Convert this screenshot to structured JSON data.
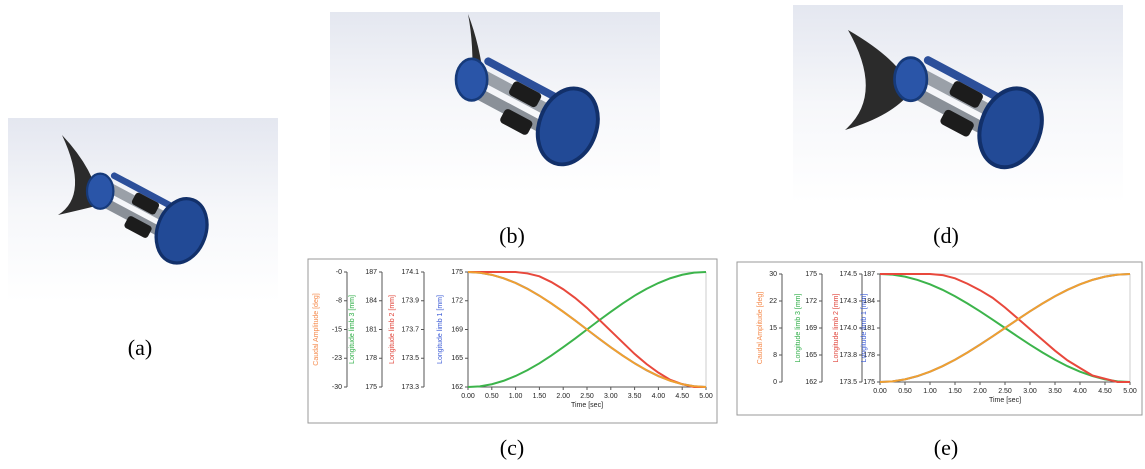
{
  "figure": {
    "panels": [
      {
        "caption": "(a)"
      },
      {
        "caption": "(b)"
      },
      {
        "caption": "(c)"
      },
      {
        "caption": "(d)"
      },
      {
        "caption": "(e)"
      }
    ]
  },
  "chart_data": [
    {
      "type": "line",
      "xlabel": "Time [sec]",
      "xlim": [
        0,
        5
      ],
      "xticks": [
        {
          "value": 0,
          "label": "0.00"
        },
        {
          "value": 0.5,
          "label": "0.50"
        },
        {
          "value": 1,
          "label": "1.00"
        },
        {
          "value": 1.5,
          "label": "1.50"
        },
        {
          "value": 2,
          "label": "2.00"
        },
        {
          "value": 2.5,
          "label": "2.50"
        },
        {
          "value": 3,
          "label": "3.00"
        },
        {
          "value": 3.5,
          "label": "3.50"
        },
        {
          "value": 4,
          "label": "4.00"
        },
        {
          "value": 4.5,
          "label": "4.50"
        },
        {
          "value": 5,
          "label": "5.00"
        }
      ],
      "x": [
        0,
        0.25,
        0.5,
        0.75,
        1,
        1.25,
        1.5,
        1.75,
        2,
        2.25,
        2.5,
        2.75,
        3,
        3.25,
        3.5,
        3.75,
        4,
        4.25,
        4.5,
        4.75,
        5
      ],
      "axes": [
        {
          "label": "Caudal Amplitude [deg]",
          "color": "#f5894a",
          "ylim": [
            -30,
            0
          ],
          "yticks": [
            -30,
            {
              "value": -22.5,
              "label": "-23"
            },
            -15,
            {
              "value": -7.5,
              "label": "-8"
            },
            {
              "value": 0,
              "label": "-0"
            }
          ]
        },
        {
          "label": "Longitude limb 3 [mm]",
          "color": "#2fae47",
          "ylim": [
            175,
            187
          ],
          "yticks": [
            175,
            178,
            181,
            184,
            187
          ]
        },
        {
          "label": "Longitude limb 2 [mm]",
          "color": "#e0443a",
          "ylim": [
            173.3,
            174.1
          ],
          "yticks": [
            173.3,
            173.5,
            173.7,
            173.9,
            174.1
          ]
        },
        {
          "label": "Longitude limb 1 [mm]",
          "color": "#3b5bd6",
          "ylim": [
            162,
            175
          ],
          "yticks": [
            162,
            {
              "value": 165.25,
              "label": "165"
            },
            {
              "value": 168.5,
              "label": "169"
            },
            {
              "value": 171.75,
              "label": "172"
            },
            175
          ]
        }
      ],
      "series": [
        {
          "axis": 3,
          "color": "#5a78c8",
          "values": [
            175,
            174.92,
            174.68,
            174.29,
            173.76,
            173.1,
            172.32,
            171.45,
            170.51,
            169.52,
            168.5,
            167.48,
            166.49,
            165.55,
            164.68,
            163.9,
            163.24,
            162.71,
            162.32,
            162.08,
            162
          ]
        },
        {
          "axis": 1,
          "color": "#3cb44b",
          "values": [
            175,
            175.07,
            175.29,
            175.65,
            176.15,
            176.76,
            177.47,
            178.28,
            179.15,
            180.06,
            181,
            181.94,
            182.85,
            183.72,
            184.53,
            185.24,
            185.85,
            186.35,
            186.71,
            186.93,
            187
          ]
        },
        {
          "axis": 2,
          "color": "#e8483c",
          "values": [
            174.1,
            174.1,
            174.1,
            174.1,
            174.1,
            174.09,
            174.07,
            174.03,
            173.98,
            173.92,
            173.85,
            173.77,
            173.69,
            173.61,
            173.53,
            173.46,
            173.4,
            173.35,
            173.32,
            173.3,
            173.3
          ]
        },
        {
          "axis": 0,
          "color": "#f0a030",
          "values": [
            0,
            -0.18,
            -0.74,
            -1.64,
            -2.87,
            -4.39,
            -6.18,
            -8.19,
            -10.37,
            -12.65,
            -15,
            -17.35,
            -19.64,
            -21.81,
            -23.82,
            -25.61,
            -27.14,
            -28.37,
            -29.27,
            -29.81,
            -30
          ]
        }
      ]
    },
    {
      "type": "line",
      "xlabel": "Time [sec]",
      "xlim": [
        0,
        5
      ],
      "xticks": [
        {
          "value": 0,
          "label": "0.00"
        },
        {
          "value": 0.5,
          "label": "0.50"
        },
        {
          "value": 1,
          "label": "1.00"
        },
        {
          "value": 1.5,
          "label": "1.50"
        },
        {
          "value": 2,
          "label": "2.00"
        },
        {
          "value": 2.5,
          "label": "2.50"
        },
        {
          "value": 3,
          "label": "3.00"
        },
        {
          "value": 3.5,
          "label": "3.50"
        },
        {
          "value": 4,
          "label": "4.00"
        },
        {
          "value": 4.5,
          "label": "4.50"
        },
        {
          "value": 5,
          "label": "5.00"
        }
      ],
      "x": [
        0,
        0.25,
        0.5,
        0.75,
        1,
        1.25,
        1.5,
        1.75,
        2,
        2.25,
        2.5,
        2.75,
        3,
        3.25,
        3.5,
        3.75,
        4,
        4.25,
        4.5,
        4.75,
        5
      ],
      "axes": [
        {
          "label": "Caudal Amplitude [deg]",
          "color": "#f5894a",
          "ylim": [
            0,
            30
          ],
          "yticks": [
            0,
            {
              "value": 7.5,
              "label": "8"
            },
            15,
            {
              "value": 22.5,
              "label": "22"
            },
            30
          ]
        },
        {
          "label": "Longitude limb 3 [mm]",
          "color": "#2fae47",
          "ylim": [
            162,
            175
          ],
          "yticks": [
            162,
            {
              "value": 165.25,
              "label": "165"
            },
            {
              "value": 168.5,
              "label": "169"
            },
            {
              "value": 171.75,
              "label": "172"
            },
            175
          ]
        },
        {
          "label": "Longitude limb 2 [mm]",
          "color": "#e0443a",
          "ylim": [
            173.5,
            174.5
          ],
          "yticks": [
            173.5,
            {
              "value": 173.75,
              "label": "173.8"
            },
            {
              "value": 174,
              "label": "174.0"
            },
            {
              "value": 174.25,
              "label": "174.3"
            },
            174.5
          ]
        },
        {
          "label": "Longitude limb 1 [mm]",
          "color": "#3b5bd6",
          "ylim": [
            175,
            187
          ],
          "yticks": [
            175,
            178,
            181,
            184,
            187
          ]
        }
      ],
      "series": [
        {
          "axis": 3,
          "color": "#4a70d0",
          "values": [
            175,
            175.07,
            175.29,
            175.65,
            176.15,
            176.76,
            177.47,
            178.28,
            179.15,
            180.06,
            181,
            181.94,
            182.85,
            183.72,
            184.53,
            185.24,
            185.85,
            186.35,
            186.71,
            186.93,
            187
          ]
        },
        {
          "axis": 1,
          "color": "#3cb44b",
          "values": [
            175,
            174.92,
            174.68,
            174.29,
            173.76,
            173.1,
            172.32,
            171.45,
            170.51,
            169.52,
            168.5,
            167.48,
            166.49,
            165.55,
            164.68,
            163.9,
            163.24,
            162.71,
            162.32,
            162.08,
            162
          ]
        },
        {
          "axis": 2,
          "color": "#e8483c",
          "values": [
            174.5,
            174.5,
            174.5,
            174.5,
            174.5,
            174.49,
            174.46,
            174.41,
            174.35,
            174.28,
            174.19,
            174.09,
            173.99,
            173.89,
            173.79,
            173.7,
            173.63,
            173.56,
            173.53,
            173.5,
            173.5
          ]
        },
        {
          "axis": 0,
          "color": "#f0a030",
          "values": [
            0,
            0.18,
            0.74,
            1.64,
            2.87,
            4.39,
            6.18,
            8.19,
            10.37,
            12.65,
            15,
            17.35,
            19.64,
            21.81,
            23.82,
            25.61,
            27.14,
            28.37,
            29.27,
            29.81,
            30
          ]
        }
      ]
    }
  ]
}
